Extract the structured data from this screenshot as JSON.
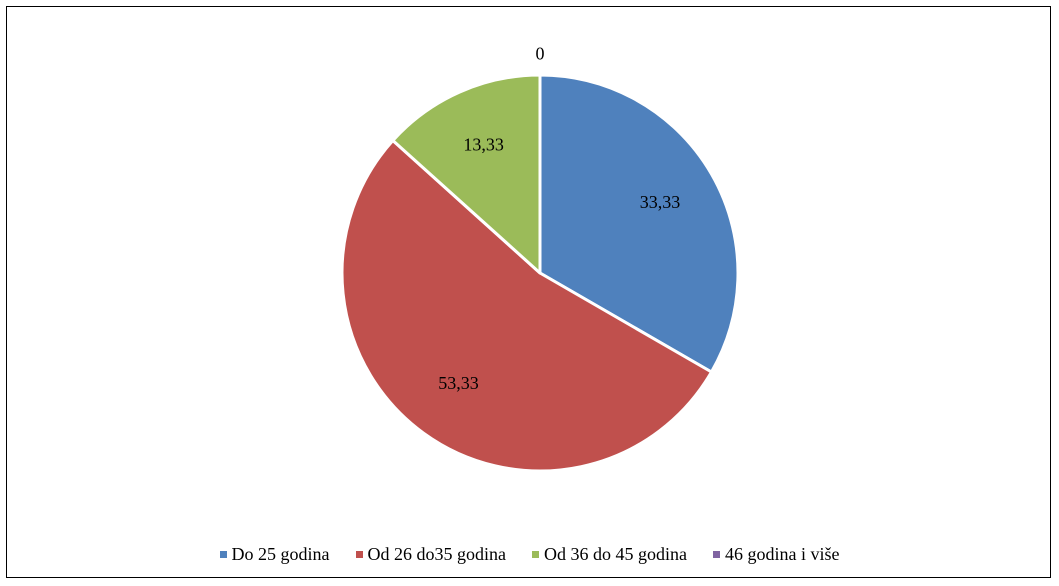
{
  "chart_data": {
    "type": "pie",
    "categories": [
      "Do 25 godina",
      "Od 26 do35 godina",
      "Od 36 do 45 godina",
      "46 godina i više"
    ],
    "values": [
      33.33,
      53.33,
      13.33,
      0
    ],
    "value_labels": [
      "33,33",
      "53,33",
      "13,33",
      "0"
    ],
    "colors": [
      "#4F81BD",
      "#C0504D",
      "#9BBB59",
      "#8064A2"
    ],
    "legend_position": "bottom"
  }
}
